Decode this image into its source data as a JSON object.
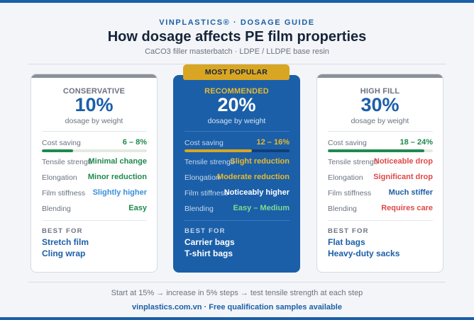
{
  "header": {
    "brand": "VINPLASTICS® · DOSAGE GUIDE",
    "title": "How dosage affects PE film properties",
    "subtitle": "CaCO3 filler masterbatch · LDPE / LLDPE base resin"
  },
  "ribbon": "MOST POPULAR",
  "colors": {
    "blue": "#1b5fa8",
    "green": "#1e8a4f",
    "gold": "#d9a623",
    "red": "#e04848",
    "lightblue": "#3b8fdc",
    "lightgreen": "#7ddc8e"
  },
  "cards": [
    {
      "tier": "CONSERVATIVE",
      "pct": "10%",
      "pct_sub": "dosage by weight",
      "cost_label": "Cost saving",
      "cost_value": "6 – 8%",
      "cost_level": 0.3,
      "props": [
        {
          "label": "Tensile strength",
          "value": "Minimal change",
          "color": "#1e8a4f"
        },
        {
          "label": "Elongation",
          "value": "Minor reduction",
          "color": "#1e8a4f"
        },
        {
          "label": "Film stiffness",
          "value": "Slightly higher",
          "color": "#3b8fdc"
        },
        {
          "label": "Blending",
          "value": "Easy",
          "color": "#1e8a4f"
        }
      ],
      "best_for_label": "BEST FOR",
      "best_for": [
        "Stretch film",
        "Cling wrap"
      ]
    },
    {
      "tier": "RECOMMENDED",
      "pct": "20%",
      "pct_sub": "dosage by weight",
      "cost_label": "Cost saving",
      "cost_value": "12 – 16%",
      "cost_level": 0.64,
      "props": [
        {
          "label": "Tensile strength",
          "value": "Slight reduction",
          "color": "#e8b92e"
        },
        {
          "label": "Elongation",
          "value": "Moderate reduction",
          "color": "#e8b92e"
        },
        {
          "label": "Film stiffness",
          "value": "Noticeably higher",
          "color": "#ffffff"
        },
        {
          "label": "Blending",
          "value": "Easy – Medium",
          "color": "#7ddc8e"
        }
      ],
      "best_for_label": "BEST FOR",
      "best_for": [
        "Carrier bags",
        "T-shirt bags"
      ]
    },
    {
      "tier": "HIGH FILL",
      "pct": "30%",
      "pct_sub": "dosage by weight",
      "cost_label": "Cost saving",
      "cost_value": "18 – 24%",
      "cost_level": 0.92,
      "props": [
        {
          "label": "Tensile strength",
          "value": "Noticeable drop",
          "color": "#e04848"
        },
        {
          "label": "Elongation",
          "value": "Significant drop",
          "color": "#e04848"
        },
        {
          "label": "Film stiffness",
          "value": "Much stiffer",
          "color": "#1b5fa8"
        },
        {
          "label": "Blending",
          "value": "Requires care",
          "color": "#e04848"
        }
      ],
      "best_for_label": "BEST FOR",
      "best_for": [
        "Flat bags",
        "Heavy-duty sacks"
      ]
    }
  ],
  "footnote": "Start at 15% → increase in 5% steps → test tensile strength at each step",
  "footer": "vinplastics.com.vn · Free qualification samples available"
}
